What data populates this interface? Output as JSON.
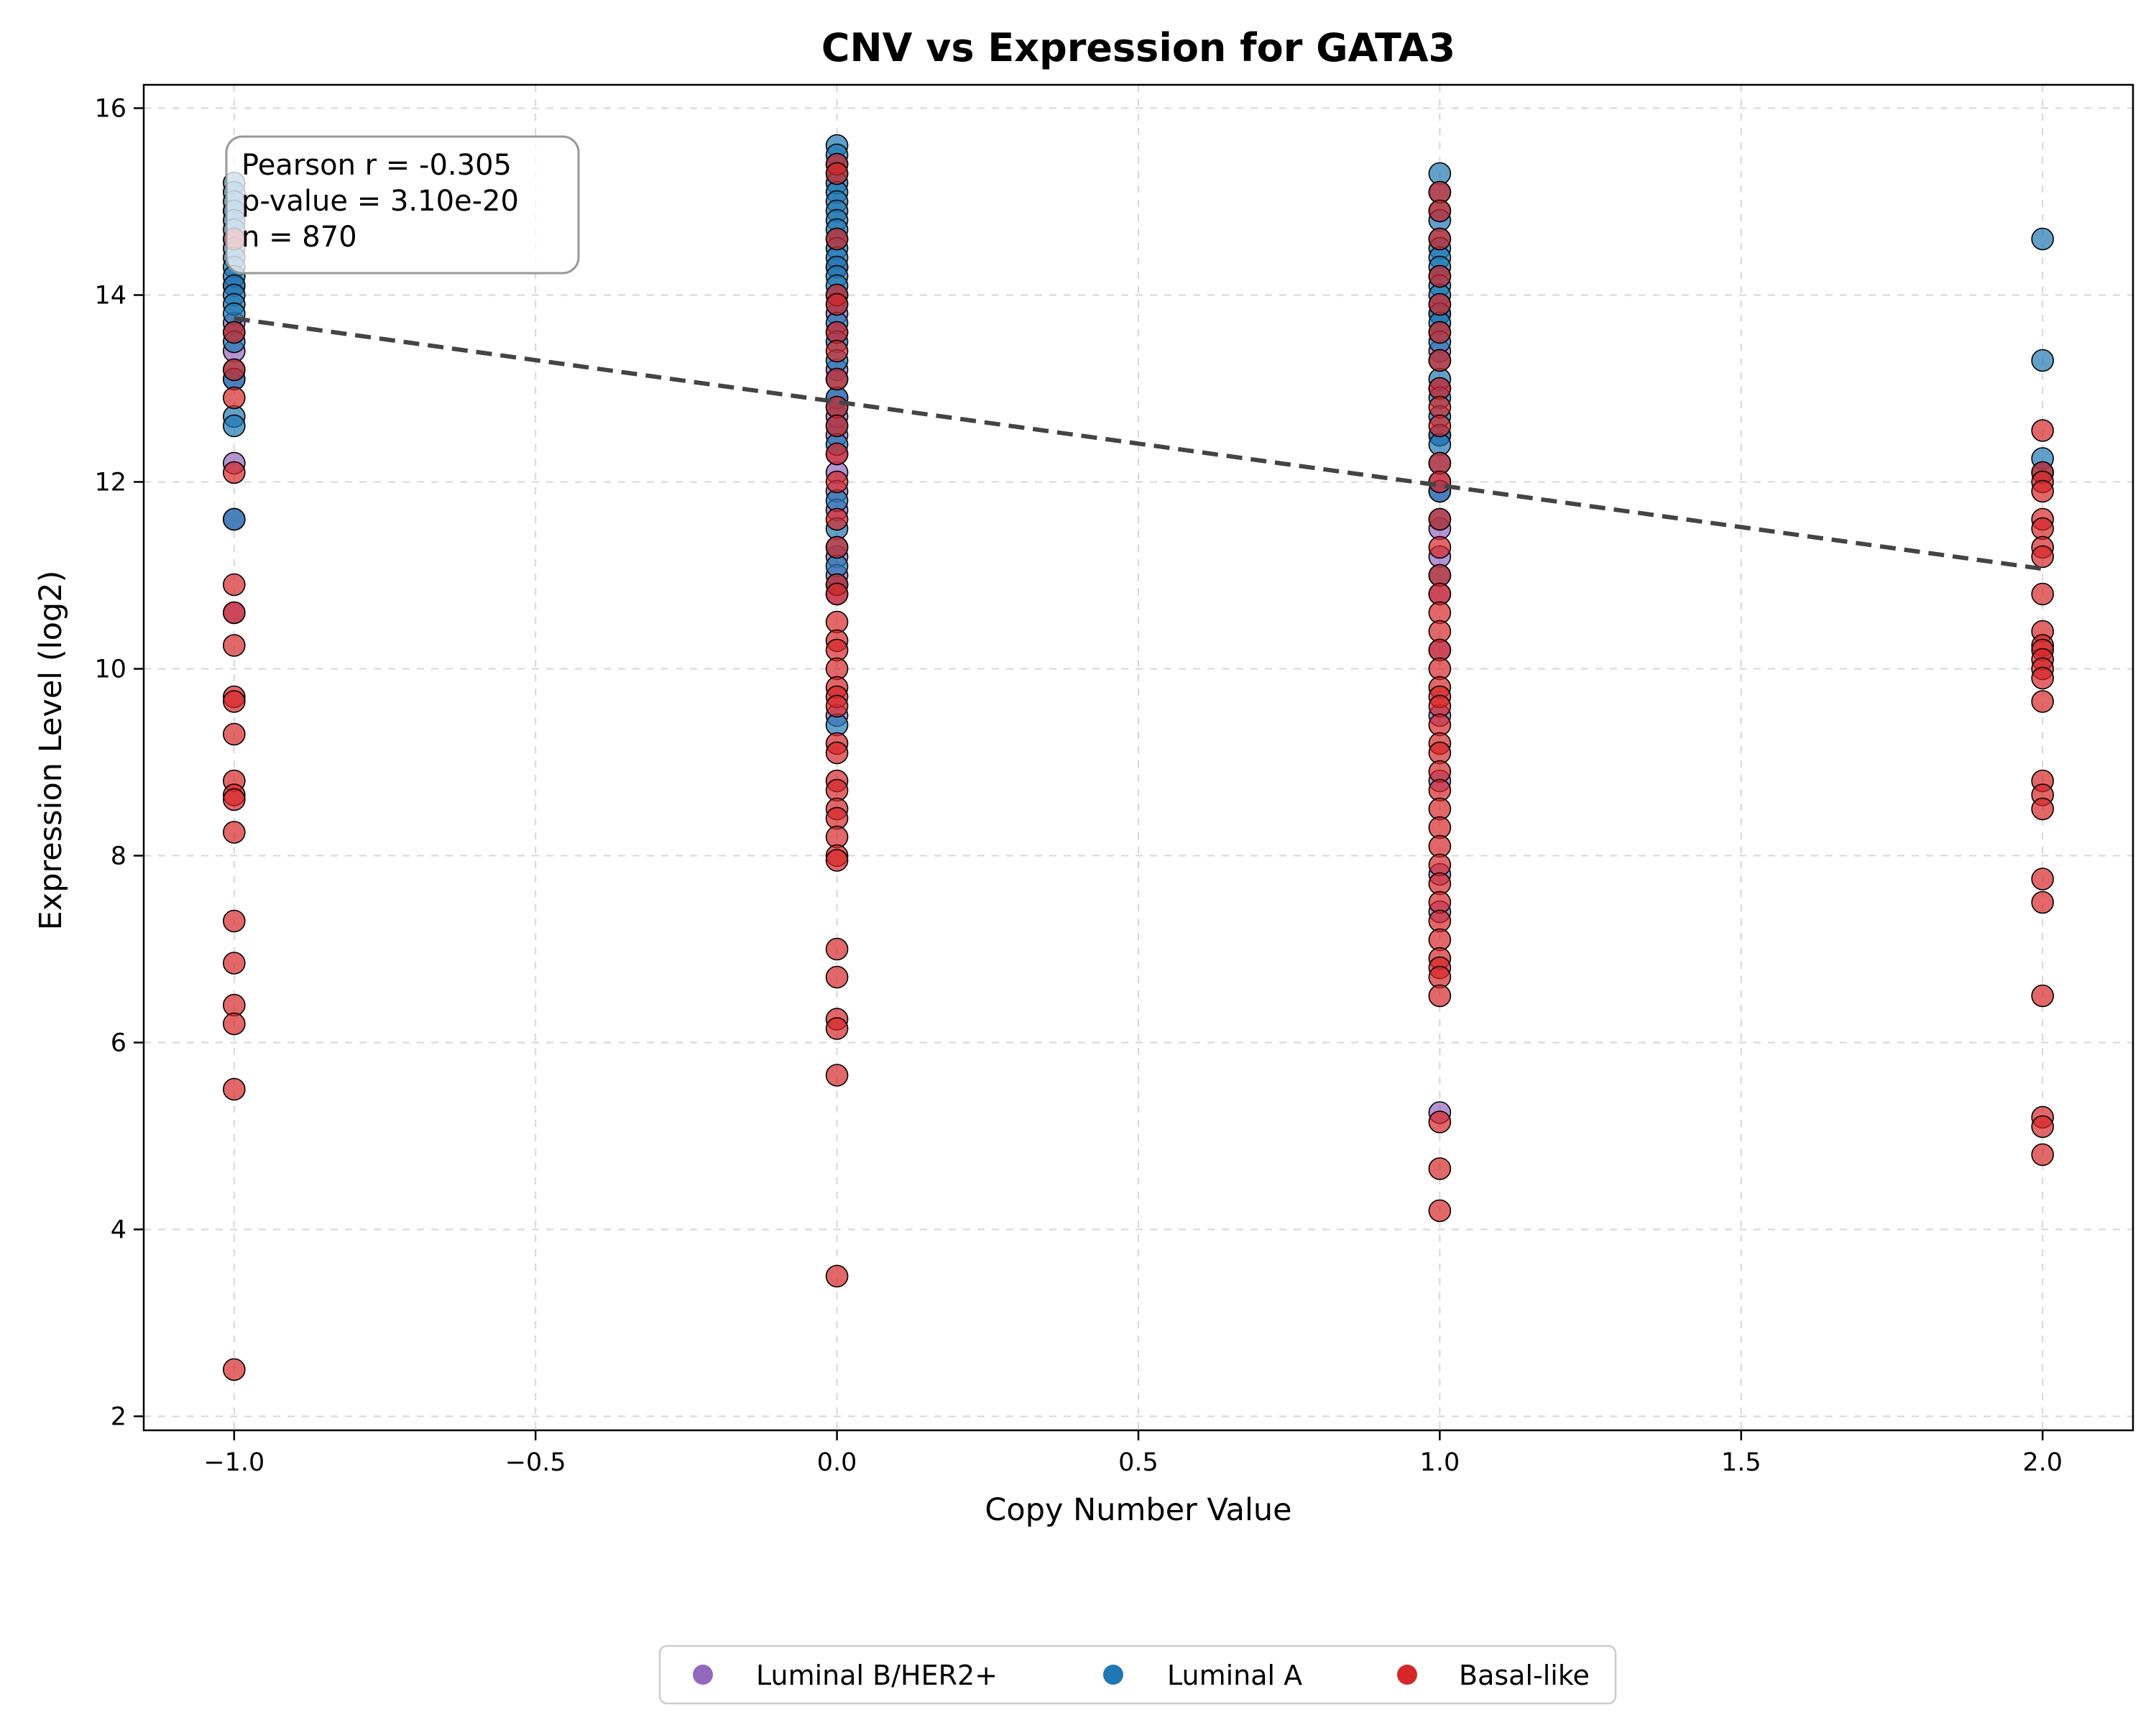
{
  "chart_data": {
    "type": "scatter",
    "title": "CNV vs Expression for GATA3",
    "xlabel": "Copy Number Value",
    "ylabel": "Expression Level (log2)",
    "xlim": [
      -1.15,
      2.15
    ],
    "ylim": [
      1.85,
      16.25
    ],
    "x_ticks": [
      -1.0,
      -0.5,
      0.0,
      0.5,
      1.0,
      1.5,
      2.0
    ],
    "x_tick_labels": [
      "−1.0",
      "−0.5",
      "0.0",
      "0.5",
      "1.0",
      "1.5",
      "2.0"
    ],
    "y_ticks": [
      2,
      4,
      6,
      8,
      10,
      12,
      14,
      16
    ],
    "y_tick_labels": [
      "2",
      "4",
      "6",
      "8",
      "10",
      "12",
      "14",
      "16"
    ],
    "grid": true,
    "legend_placement": "bottom-center",
    "annotation": {
      "lines": [
        "Pearson r = -0.305",
        "p-value = 3.10e-20",
        "n = 870"
      ]
    },
    "trend_line": {
      "x": [
        -1.0,
        2.0
      ],
      "y": [
        13.75,
        11.07
      ],
      "color": "#444444",
      "style": "dashed"
    },
    "series": [
      {
        "name": "Luminal B/HER2+",
        "color": "#9467bd",
        "points": [
          [
            -1,
            13.4
          ],
          [
            -1,
            13.1
          ],
          [
            -1,
            12.2
          ],
          [
            -1,
            11.6
          ],
          [
            -1,
            13.7
          ],
          [
            -1,
            14.1
          ],
          [
            -1,
            14.9
          ],
          [
            -1,
            10.6
          ],
          [
            0,
            13.8
          ],
          [
            0,
            13.6
          ],
          [
            0,
            13.2
          ],
          [
            0,
            12.9
          ],
          [
            0,
            12.5
          ],
          [
            0,
            12.1
          ],
          [
            0,
            11.9
          ],
          [
            0,
            11.7
          ],
          [
            0,
            11.2
          ],
          [
            0,
            11.0
          ],
          [
            0,
            10.8
          ],
          [
            0,
            9.5
          ],
          [
            0,
            12.7
          ],
          [
            0,
            12.3
          ],
          [
            0,
            14.3
          ],
          [
            1,
            13.8
          ],
          [
            1,
            13.4
          ],
          [
            1,
            12.5
          ],
          [
            1,
            12.0
          ],
          [
            1,
            11.9
          ],
          [
            1,
            11.2
          ],
          [
            1,
            10.8
          ],
          [
            1,
            10.2
          ],
          [
            1,
            9.5
          ],
          [
            1,
            8.8
          ],
          [
            1,
            7.8
          ],
          [
            1,
            7.4
          ],
          [
            1,
            5.25
          ],
          [
            1,
            11.5
          ],
          [
            1,
            13.0
          ]
        ]
      },
      {
        "name": "Luminal A",
        "color": "#1f77b4",
        "points": [
          [
            -1,
            15.2
          ],
          [
            -1,
            15.1
          ],
          [
            -1,
            15.0
          ],
          [
            -1,
            14.9
          ],
          [
            -1,
            14.8
          ],
          [
            -1,
            14.7
          ],
          [
            -1,
            14.6
          ],
          [
            -1,
            14.5
          ],
          [
            -1,
            14.4
          ],
          [
            -1,
            14.3
          ],
          [
            -1,
            14.2
          ],
          [
            -1,
            14.1
          ],
          [
            -1,
            14.0
          ],
          [
            -1,
            13.9
          ],
          [
            -1,
            13.8
          ],
          [
            -1,
            13.6
          ],
          [
            -1,
            13.5
          ],
          [
            -1,
            13.2
          ],
          [
            -1,
            13.1
          ],
          [
            -1,
            12.7
          ],
          [
            -1,
            12.6
          ],
          [
            -1,
            11.6
          ],
          [
            0,
            15.6
          ],
          [
            0,
            15.5
          ],
          [
            0,
            15.4
          ],
          [
            0,
            15.3
          ],
          [
            0,
            15.2
          ],
          [
            0,
            15.1
          ],
          [
            0,
            15.0
          ],
          [
            0,
            14.9
          ],
          [
            0,
            14.8
          ],
          [
            0,
            14.7
          ],
          [
            0,
            14.6
          ],
          [
            0,
            14.5
          ],
          [
            0,
            14.4
          ],
          [
            0,
            14.3
          ],
          [
            0,
            14.2
          ],
          [
            0,
            14.1
          ],
          [
            0,
            14.0
          ],
          [
            0,
            13.9
          ],
          [
            0,
            13.7
          ],
          [
            0,
            13.5
          ],
          [
            0,
            13.3
          ],
          [
            0,
            13.1
          ],
          [
            0,
            12.9
          ],
          [
            0,
            12.8
          ],
          [
            0,
            12.6
          ],
          [
            0,
            12.4
          ],
          [
            0,
            11.8
          ],
          [
            0,
            11.5
          ],
          [
            0,
            11.3
          ],
          [
            0,
            11.1
          ],
          [
            0,
            10.9
          ],
          [
            0,
            9.4
          ],
          [
            1,
            15.3
          ],
          [
            1,
            15.1
          ],
          [
            1,
            14.9
          ],
          [
            1,
            14.8
          ],
          [
            1,
            14.6
          ],
          [
            1,
            14.5
          ],
          [
            1,
            14.4
          ],
          [
            1,
            14.3
          ],
          [
            1,
            14.2
          ],
          [
            1,
            14.1
          ],
          [
            1,
            14.0
          ],
          [
            1,
            13.9
          ],
          [
            1,
            13.8
          ],
          [
            1,
            13.7
          ],
          [
            1,
            13.6
          ],
          [
            1,
            13.5
          ],
          [
            1,
            13.3
          ],
          [
            1,
            13.1
          ],
          [
            1,
            12.9
          ],
          [
            1,
            12.7
          ],
          [
            1,
            12.5
          ],
          [
            1,
            12.4
          ],
          [
            1,
            12.2
          ],
          [
            1,
            11.9
          ],
          [
            1,
            11.6
          ],
          [
            1,
            11.0
          ],
          [
            2,
            14.6
          ],
          [
            2,
            13.3
          ],
          [
            2,
            12.25
          ],
          [
            2,
            12.1
          ]
        ]
      },
      {
        "name": "Basal-like",
        "color": "#d62728",
        "points": [
          [
            -1,
            14.6
          ],
          [
            -1,
            13.6
          ],
          [
            -1,
            13.2
          ],
          [
            -1,
            12.9
          ],
          [
            -1,
            12.1
          ],
          [
            -1,
            10.9
          ],
          [
            -1,
            10.6
          ],
          [
            -1,
            10.25
          ],
          [
            -1,
            9.7
          ],
          [
            -1,
            9.65
          ],
          [
            -1,
            9.3
          ],
          [
            -1,
            8.8
          ],
          [
            -1,
            8.65
          ],
          [
            -1,
            8.6
          ],
          [
            -1,
            8.25
          ],
          [
            -1,
            7.3
          ],
          [
            -1,
            6.85
          ],
          [
            -1,
            6.4
          ],
          [
            -1,
            6.2
          ],
          [
            -1,
            5.5
          ],
          [
            -1,
            2.5
          ],
          [
            0,
            15.4
          ],
          [
            0,
            15.3
          ],
          [
            0,
            14.6
          ],
          [
            0,
            14.0
          ],
          [
            0,
            13.9
          ],
          [
            0,
            13.6
          ],
          [
            0,
            13.4
          ],
          [
            0,
            13.1
          ],
          [
            0,
            12.8
          ],
          [
            0,
            12.6
          ],
          [
            0,
            12.3
          ],
          [
            0,
            12.0
          ],
          [
            0,
            11.6
          ],
          [
            0,
            11.3
          ],
          [
            0,
            10.9
          ],
          [
            0,
            10.8
          ],
          [
            0,
            10.5
          ],
          [
            0,
            10.3
          ],
          [
            0,
            10.2
          ],
          [
            0,
            10.0
          ],
          [
            0,
            9.8
          ],
          [
            0,
            9.7
          ],
          [
            0,
            9.6
          ],
          [
            0,
            9.2
          ],
          [
            0,
            9.1
          ],
          [
            0,
            8.8
          ],
          [
            0,
            8.7
          ],
          [
            0,
            8.5
          ],
          [
            0,
            8.4
          ],
          [
            0,
            8.2
          ],
          [
            0,
            8.0
          ],
          [
            0,
            7.95
          ],
          [
            0,
            7.0
          ],
          [
            0,
            6.7
          ],
          [
            0,
            6.25
          ],
          [
            0,
            6.15
          ],
          [
            0,
            5.65
          ],
          [
            0,
            3.5
          ],
          [
            1,
            15.1
          ],
          [
            1,
            14.9
          ],
          [
            1,
            14.6
          ],
          [
            1,
            14.2
          ],
          [
            1,
            13.9
          ],
          [
            1,
            13.6
          ],
          [
            1,
            13.3
          ],
          [
            1,
            13.0
          ],
          [
            1,
            12.8
          ],
          [
            1,
            12.6
          ],
          [
            1,
            12.2
          ],
          [
            1,
            12.0
          ],
          [
            1,
            11.6
          ],
          [
            1,
            11.3
          ],
          [
            1,
            11.0
          ],
          [
            1,
            10.8
          ],
          [
            1,
            10.6
          ],
          [
            1,
            10.4
          ],
          [
            1,
            10.2
          ],
          [
            1,
            10.0
          ],
          [
            1,
            9.8
          ],
          [
            1,
            9.7
          ],
          [
            1,
            9.6
          ],
          [
            1,
            9.4
          ],
          [
            1,
            9.2
          ],
          [
            1,
            9.1
          ],
          [
            1,
            8.9
          ],
          [
            1,
            8.7
          ],
          [
            1,
            8.5
          ],
          [
            1,
            8.3
          ],
          [
            1,
            8.1
          ],
          [
            1,
            7.9
          ],
          [
            1,
            7.7
          ],
          [
            1,
            7.5
          ],
          [
            1,
            7.3
          ],
          [
            1,
            7.1
          ],
          [
            1,
            6.9
          ],
          [
            1,
            6.8
          ],
          [
            1,
            6.7
          ],
          [
            1,
            6.5
          ],
          [
            1,
            5.15
          ],
          [
            1,
            4.65
          ],
          [
            1,
            4.2
          ],
          [
            2,
            12.55
          ],
          [
            2,
            12.1
          ],
          [
            2,
            12.0
          ],
          [
            2,
            11.9
          ],
          [
            2,
            11.6
          ],
          [
            2,
            11.5
          ],
          [
            2,
            11.3
          ],
          [
            2,
            11.2
          ],
          [
            2,
            10.8
          ],
          [
            2,
            10.4
          ],
          [
            2,
            10.25
          ],
          [
            2,
            10.2
          ],
          [
            2,
            10.1
          ],
          [
            2,
            10.0
          ],
          [
            2,
            9.9
          ],
          [
            2,
            9.65
          ],
          [
            2,
            8.8
          ],
          [
            2,
            8.65
          ],
          [
            2,
            8.5
          ],
          [
            2,
            7.75
          ],
          [
            2,
            7.5
          ],
          [
            2,
            6.5
          ],
          [
            2,
            5.2
          ],
          [
            2,
            5.1
          ],
          [
            2,
            4.8
          ]
        ]
      }
    ]
  }
}
